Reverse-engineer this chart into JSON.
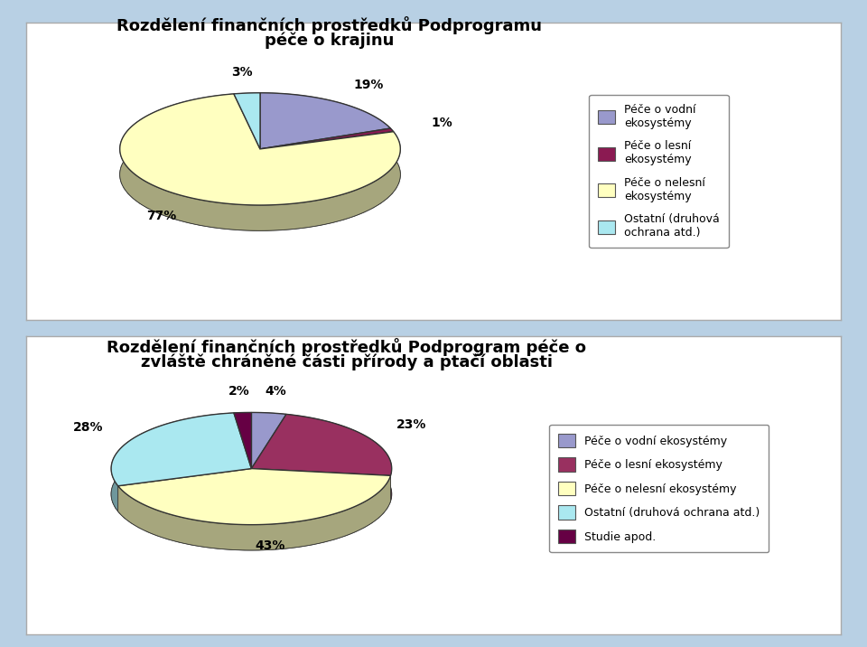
{
  "chart1": {
    "title_line1": "Rozdělení finančních prostředků Podprogramu",
    "title_line2": "péče o krajinu",
    "values": [
      19,
      1,
      77,
      3
    ],
    "pct_labels": [
      "19%",
      "1%",
      "77%",
      "3%"
    ],
    "colors": [
      "#9999cc",
      "#8b1a52",
      "#ffffc0",
      "#aae8f0"
    ],
    "legend_labels": [
      "Péče o vodní\nekosystémy",
      "Péče o lesní\nekosystémy",
      "Péče o nelesní\nekosystémy",
      "Ostatní (druhová\nochrana atd.)"
    ]
  },
  "chart2": {
    "title_line1": "Rozdělení finančních prostředků Podprogram péče o",
    "title_line2": "zvláště chráněné části přírody a ptačí oblasti",
    "values": [
      4,
      23,
      43,
      28,
      2
    ],
    "pct_labels": [
      "4%",
      "23%",
      "43%",
      "28%",
      "2%"
    ],
    "colors": [
      "#9999cc",
      "#993060",
      "#ffffc0",
      "#aae8f0",
      "#660044"
    ],
    "legend_labels": [
      "Péče o vodní ekosystémy",
      "Péče o lesní ekosystémy",
      "Péče o nelesní ekosystémy",
      "Ostatní (druhová ochrana atd.)",
      "Studie apod."
    ]
  },
  "outer_bg": "#b8d0e4",
  "box_bg": "#ffffff",
  "box_edge": "#aaaaaa",
  "shadow_color": "#8b8b6b",
  "shadow_dark": "#5a5a3a",
  "label_fontsize": 10,
  "title_fontsize": 13,
  "legend_fontsize": 9
}
